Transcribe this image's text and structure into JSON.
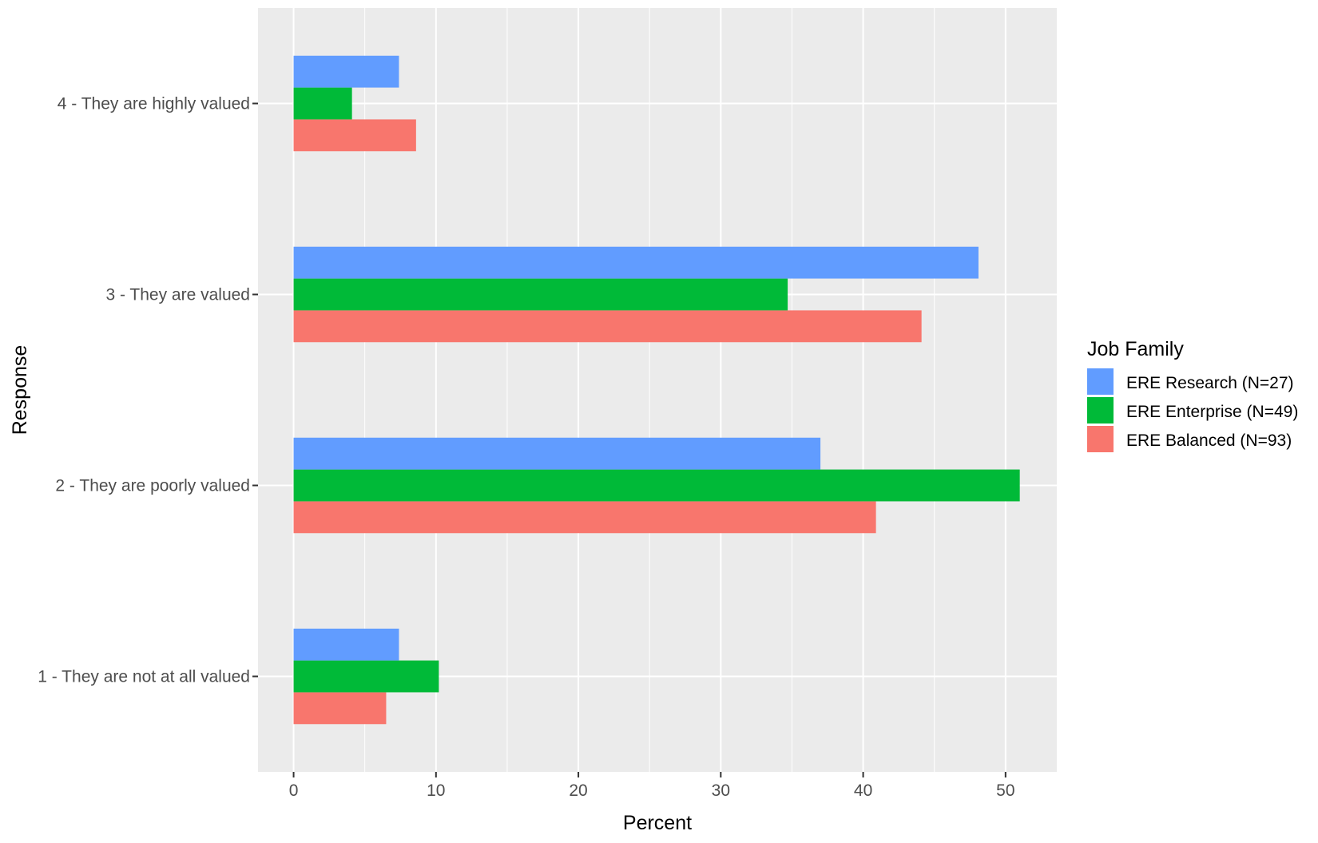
{
  "chart_data": {
    "type": "bar",
    "orientation": "horizontal",
    "xlabel": "Percent",
    "ylabel": "Response",
    "xlim": [
      -2.5,
      53.6
    ],
    "x_ticks": [
      0,
      10,
      20,
      30,
      40,
      50
    ],
    "categories": [
      "1 - They are not at all valued",
      "2 - They are poorly valued",
      "3 - They are valued",
      "4 - They are highly valued"
    ],
    "series": [
      {
        "name": "ERE Balanced (N=93)",
        "color": "#F8766D",
        "values": [
          6.5,
          40.9,
          44.1,
          8.6
        ]
      },
      {
        "name": "ERE Enterprise (N=49)",
        "color": "#00BA38",
        "values": [
          10.2,
          51.0,
          34.7,
          4.1
        ]
      },
      {
        "name": "ERE Research (N=27)",
        "color": "#619CFF",
        "values": [
          7.4,
          37.0,
          48.1,
          7.4
        ]
      }
    ],
    "legend": {
      "title": "Job Family",
      "placement": "right",
      "order": [
        "ERE Research (N=27)",
        "ERE Enterprise (N=49)",
        "ERE Balanced (N=93)"
      ]
    },
    "grid": true,
    "panel_background": "#EBEBEB",
    "grid_color": "#FFFFFF"
  }
}
